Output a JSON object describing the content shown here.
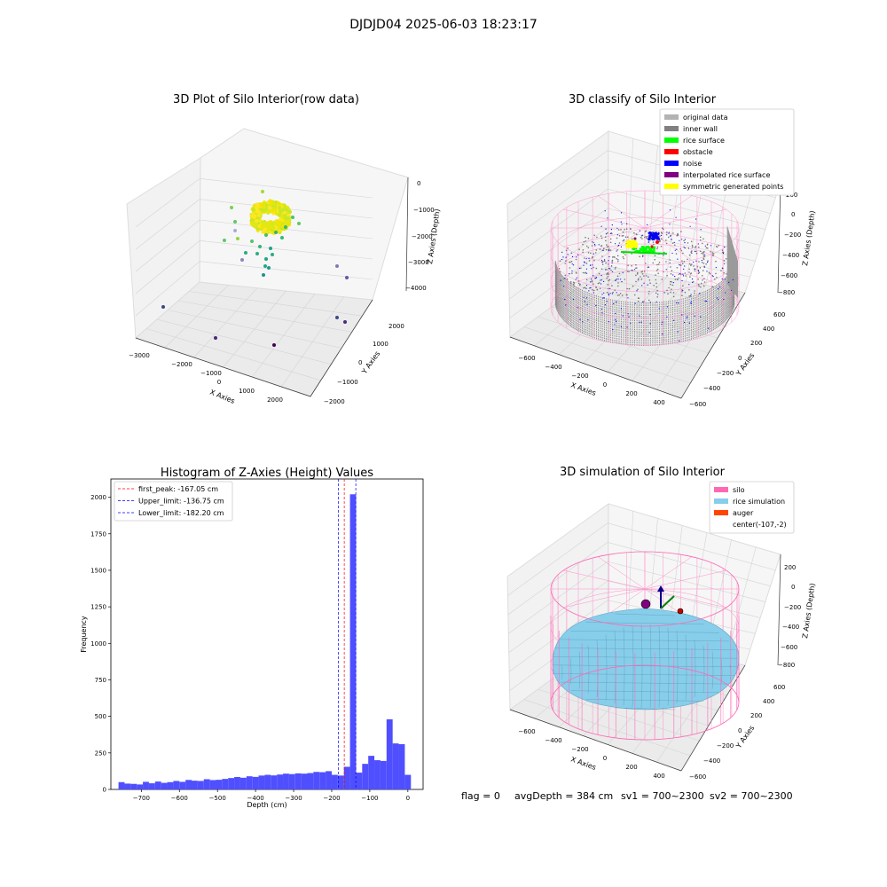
{
  "figure": {
    "suptitle": "DJDJD04 2025-06-03 18:23:17",
    "footer": {
      "flag": "flag = 0",
      "avg_depth": "avgDepth = 384 cm",
      "sv1": "sv1 = 700~2300",
      "sv2": "sv2 = 700~2300"
    }
  },
  "panels": {
    "raw": {
      "title": "3D Plot of Silo Interior(row data)",
      "xlabel": "X Axies",
      "ylabel": "Y Axies",
      "zlabel": "Z Axies (Depth)",
      "xticks": [
        "−3000",
        "−2000",
        "−1000",
        "0",
        "1000",
        "2000"
      ],
      "yticks": [
        "−2000",
        "−1000",
        "0",
        "1000",
        "2000"
      ],
      "zticks": [
        "0",
        "−1000",
        "−2000",
        "−3000",
        "−4000"
      ]
    },
    "classify": {
      "title": "3D classify of Silo Interior",
      "xlabel": "X Axies",
      "ylabel": "Y Axies",
      "zlabel": "Z Axies (Depth)",
      "xticks": [
        "−600",
        "−400",
        "−200",
        "0",
        "200",
        "400"
      ],
      "yticks": [
        "−600",
        "−400",
        "−200",
        "0",
        "200",
        "400",
        "600"
      ],
      "zticks": [
        "200",
        "0",
        "−200",
        "−400",
        "−600",
        "−800"
      ],
      "legend": [
        {
          "label": "original data",
          "color": "#b3b3b3"
        },
        {
          "label": "inner wall",
          "color": "#808080"
        },
        {
          "label": "rice surface",
          "color": "#00ff00"
        },
        {
          "label": "obstacle",
          "color": "#ff0000"
        },
        {
          "label": "noise",
          "color": "#0000ff"
        },
        {
          "label": "interpolated rice surface",
          "color": "#800080"
        },
        {
          "label": "symmetric generated points",
          "color": "#ffff00"
        }
      ]
    },
    "simulation": {
      "title": "3D simulation of Silo Interior",
      "xlabel": "X Axies",
      "ylabel": "Y Axies",
      "zlabel": "Z Axies (Depth)",
      "xticks": [
        "−600",
        "−400",
        "−200",
        "0",
        "200",
        "400"
      ],
      "yticks": [
        "−600",
        "−400",
        "−200",
        "0",
        "200",
        "400",
        "600"
      ],
      "zticks": [
        "200",
        "0",
        "−200",
        "−400",
        "−600",
        "−800"
      ],
      "legend": [
        {
          "label": "silo",
          "color": "#ff69b4"
        },
        {
          "label": "rice simulation",
          "color": "#87ceeb"
        },
        {
          "label": "auger",
          "color": "#ff4500"
        },
        {
          "label": "center(-107,-2)",
          "color": ""
        }
      ]
    }
  },
  "chart_data": [
    {
      "type": "scatter",
      "title": "3D Plot of Silo Interior(row data)",
      "xlabel": "X Axies",
      "ylabel": "Y Axies",
      "zlabel": "Z Axies (Depth)",
      "xlim": [
        -3000,
        2500
      ],
      "ylim": [
        -2000,
        2500
      ],
      "zlim": [
        -4500,
        0
      ]
    },
    {
      "type": "scatter",
      "title": "3D classify of Silo Interior",
      "xlabel": "X Axies",
      "ylabel": "Y Axies",
      "zlabel": "Z Axies (Depth)",
      "series": [
        {
          "name": "original data"
        },
        {
          "name": "inner wall"
        },
        {
          "name": "rice surface"
        },
        {
          "name": "obstacle"
        },
        {
          "name": "noise"
        },
        {
          "name": "interpolated rice surface"
        },
        {
          "name": "symmetric generated points"
        }
      ]
    },
    {
      "type": "bar",
      "title": "Histogram of Z-Axies (Height) Values",
      "xlabel": "Depth (cm)",
      "ylabel": "Frequency",
      "xlim": [
        -780,
        40
      ],
      "ylim": [
        0,
        2125
      ],
      "xticks": [
        -700,
        -600,
        -500,
        -400,
        -300,
        -200,
        -100,
        0
      ],
      "yticks": [
        0,
        250,
        500,
        750,
        1000,
        1250,
        1500,
        1750,
        2000
      ],
      "bin_width": 16,
      "bin_starts": [
        -760,
        -744,
        -728,
        -712,
        -696,
        -680,
        -664,
        -648,
        -632,
        -616,
        -600,
        -584,
        -568,
        -552,
        -536,
        -520,
        -504,
        -488,
        -472,
        -456,
        -440,
        -424,
        -408,
        -392,
        -376,
        -360,
        -344,
        -328,
        -312,
        -296,
        -280,
        -264,
        -248,
        -232,
        -216,
        -200,
        -184,
        -168,
        -152,
        -136,
        -120,
        -104,
        -88,
        -72,
        -56,
        -40,
        -24,
        -8
      ],
      "values": [
        50,
        40,
        38,
        34,
        52,
        42,
        54,
        45,
        50,
        58,
        52,
        65,
        60,
        58,
        70,
        64,
        66,
        72,
        78,
        85,
        80,
        90,
        86,
        95,
        100,
        96,
        102,
        108,
        105,
        110,
        108,
        112,
        120,
        118,
        125,
        100,
        95,
        155,
        2020,
        115,
        175,
        230,
        200,
        195,
        480,
        315,
        310,
        100
      ],
      "vlines": [
        {
          "label": "first_peak: -167.05 cm",
          "x": -167.05,
          "color": "#ff0000"
        },
        {
          "label": "Upper_limit: -136.75 cm",
          "x": -136.75,
          "color": "#0000ff"
        },
        {
          "label": "Lower_limit: -182.20 cm",
          "x": -182.2,
          "color": "#0000ff"
        }
      ],
      "bar_color": "#4f4fff"
    },
    {
      "type": "surface",
      "title": "3D simulation of Silo Interior",
      "xlabel": "X Axies",
      "ylabel": "Y Axies",
      "zlabel": "Z Axies (Depth)",
      "series": [
        {
          "name": "silo"
        },
        {
          "name": "rice simulation"
        },
        {
          "name": "auger"
        },
        {
          "name": "center(-107,-2)"
        }
      ]
    }
  ]
}
